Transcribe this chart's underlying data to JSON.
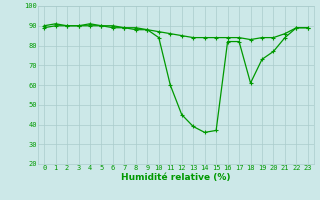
{
  "xlabel": "Humidité relative (%)",
  "x": [
    0,
    1,
    2,
    3,
    4,
    5,
    6,
    7,
    8,
    9,
    10,
    11,
    12,
    13,
    14,
    15,
    16,
    17,
    18,
    19,
    20,
    21,
    22,
    23
  ],
  "line1": [
    90,
    91,
    90,
    90,
    91,
    90,
    90,
    89,
    89,
    88,
    84,
    60,
    45,
    39,
    36,
    37,
    82,
    82,
    61,
    73,
    77,
    84,
    89,
    89
  ],
  "line2": [
    89,
    90,
    90,
    90,
    90,
    90,
    89,
    89,
    88,
    88,
    87,
    86,
    85,
    84,
    84,
    84,
    84,
    84,
    83,
    84,
    84,
    86,
    89,
    89
  ],
  "ylim": [
    20,
    100
  ],
  "xlim": [
    -0.5,
    23.5
  ],
  "bg_color": "#cce8e8",
  "grid_color": "#aacccc",
  "line_color": "#009900",
  "markersize": 2.5,
  "linewidth": 0.9,
  "yticks": [
    20,
    30,
    40,
    50,
    60,
    70,
    80,
    90,
    100
  ],
  "xticks": [
    0,
    1,
    2,
    3,
    4,
    5,
    6,
    7,
    8,
    9,
    10,
    11,
    12,
    13,
    14,
    15,
    16,
    17,
    18,
    19,
    20,
    21,
    22,
    23
  ],
  "tick_fontsize": 5.0,
  "xlabel_fontsize": 6.5,
  "xlabel_color": "#009900",
  "tick_color": "#009900"
}
